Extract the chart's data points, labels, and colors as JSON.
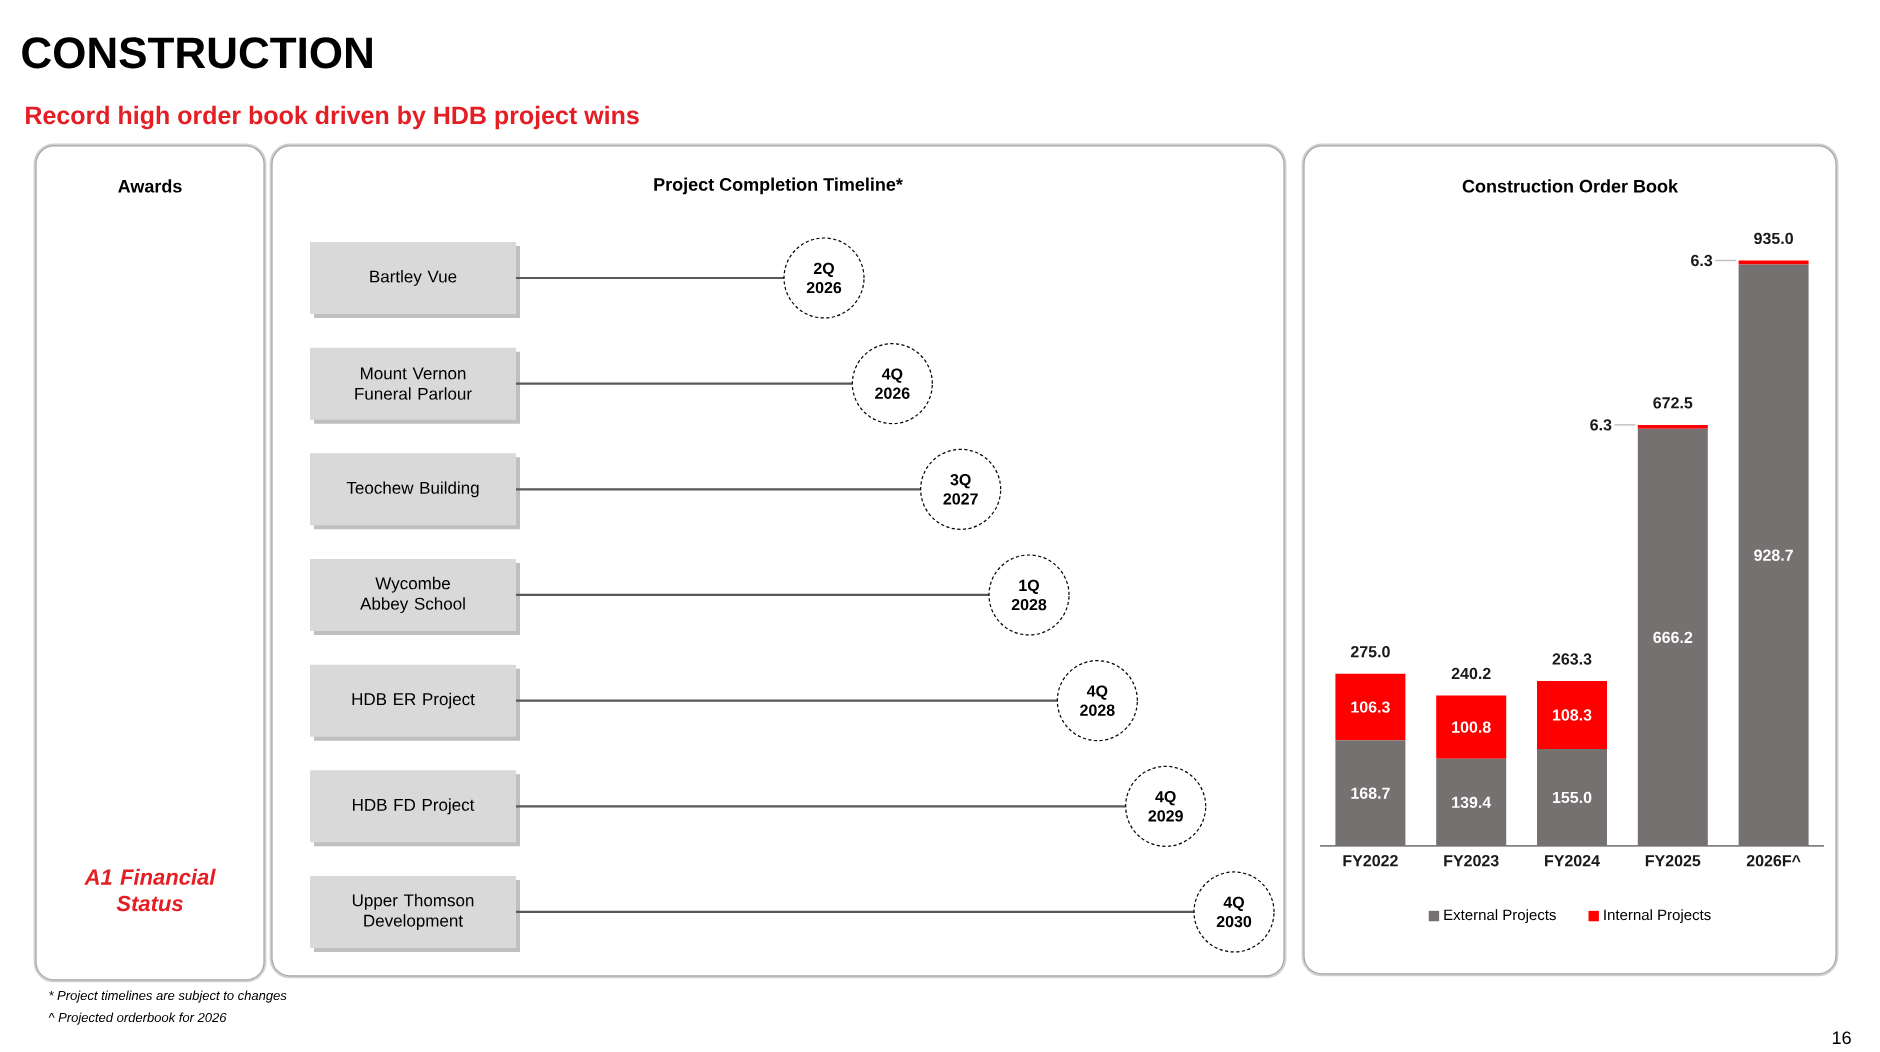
{
  "chart_data": [
    {
      "type": "other",
      "title": "CONSTRUCTION",
      "subtitle": "Record high order book driven by HDB project wins",
      "annotations": [
        "* Project timelines are subject to changes",
        "^ Projected orderbook for 2026",
        "16"
      ]
    },
    {
      "type": "other",
      "title": "Awards",
      "annotations": [
        "A1 Financial Status"
      ]
    },
    {
      "type": "other",
      "title": "Project Completion Timeline*",
      "categories": [
        "Bartley Vue",
        "Mount Vernon Funeral Parlour",
        "Teochew Building",
        "Wycombe Abbey School",
        "HDB ER Project",
        "HDB FD Project",
        "Upper Thomson Development"
      ],
      "value_labels": [
        "2Q 2026",
        "4Q 2026",
        "3Q 2027",
        "1Q 2028",
        "4Q 2028",
        "4Q 2029",
        "4Q 2030"
      ]
    },
    {
      "type": "bar",
      "title": "Construction Order Book",
      "categories": [
        "FY2022",
        "FY2023",
        "FY2024",
        "FY2025",
        "2026F^"
      ],
      "stacked": true,
      "series": [
        {
          "name": "External Projects",
          "color": "#767171",
          "values": [
            168.7,
            139.4,
            155.0,
            666.2,
            928.7
          ],
          "value_labels": [
            "168.7",
            "139.4",
            "155.0",
            "666.2",
            "928.7"
          ]
        },
        {
          "name": "Internal Projects",
          "color": "#ff0000",
          "values": [
            106.3,
            100.8,
            108.3,
            6.3,
            6.3
          ],
          "value_labels": [
            "106.3",
            "100.8",
            "108.3",
            "6.3",
            "6.3"
          ]
        }
      ],
      "totals": [
        "275.0",
        "240.2",
        "263.3",
        "672.5",
        "935.0"
      ],
      "legend": "bottom",
      "tick_labels": "x"
    }
  ]
}
